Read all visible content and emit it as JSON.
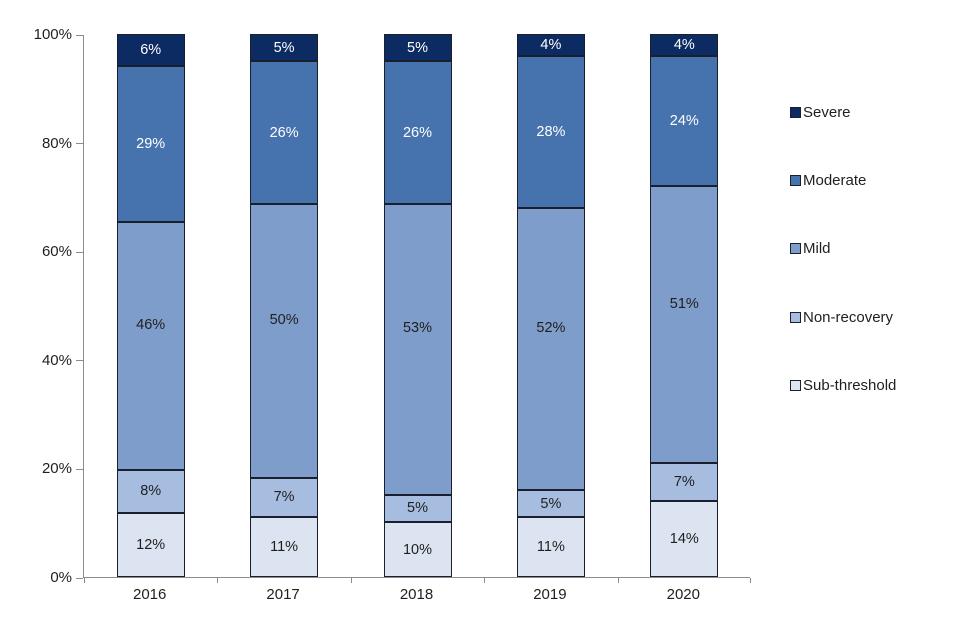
{
  "chart_data": {
    "type": "bar",
    "stacked": true,
    "title": "",
    "xlabel": "",
    "ylabel": "",
    "categories": [
      "2016",
      "2017",
      "2018",
      "2019",
      "2020"
    ],
    "series": [
      {
        "name": "Sub-threshold",
        "color": "#DCE3F1",
        "label_color": "#1f1f1f",
        "values": [
          12,
          11,
          10,
          11,
          14
        ]
      },
      {
        "name": "Non-recovery",
        "color": "#A7BDDF",
        "label_color": "#1f1f1f",
        "values": [
          8,
          7,
          5,
          5,
          7
        ]
      },
      {
        "name": "Mild",
        "color": "#7F9DCA",
        "label_color": "#1f1f1f",
        "values": [
          46,
          50,
          53,
          52,
          51
        ]
      },
      {
        "name": "Moderate",
        "color": "#4673AE",
        "label_color": "#FFFFFF",
        "values": [
          29,
          26,
          26,
          28,
          24
        ]
      },
      {
        "name": "Severe",
        "color": "#0D2B63",
        "label_color": "#FFFFFF",
        "values": [
          6,
          5,
          5,
          4,
          4
        ]
      }
    ],
    "value_suffix": "%",
    "y_axis": {
      "range": [
        0,
        100
      ],
      "tick_labels": [
        "0%",
        "20%",
        "40%",
        "60%",
        "80%",
        "100%"
      ],
      "grid": false
    },
    "legend": {
      "position": "right",
      "order": [
        "Severe",
        "Moderate",
        "Mild",
        "Non-recovery",
        "Sub-threshold"
      ]
    },
    "colors": {
      "axis": "#8c8c8c",
      "segment_border": "#1a1f2e",
      "text": "#1f1f1f"
    }
  }
}
